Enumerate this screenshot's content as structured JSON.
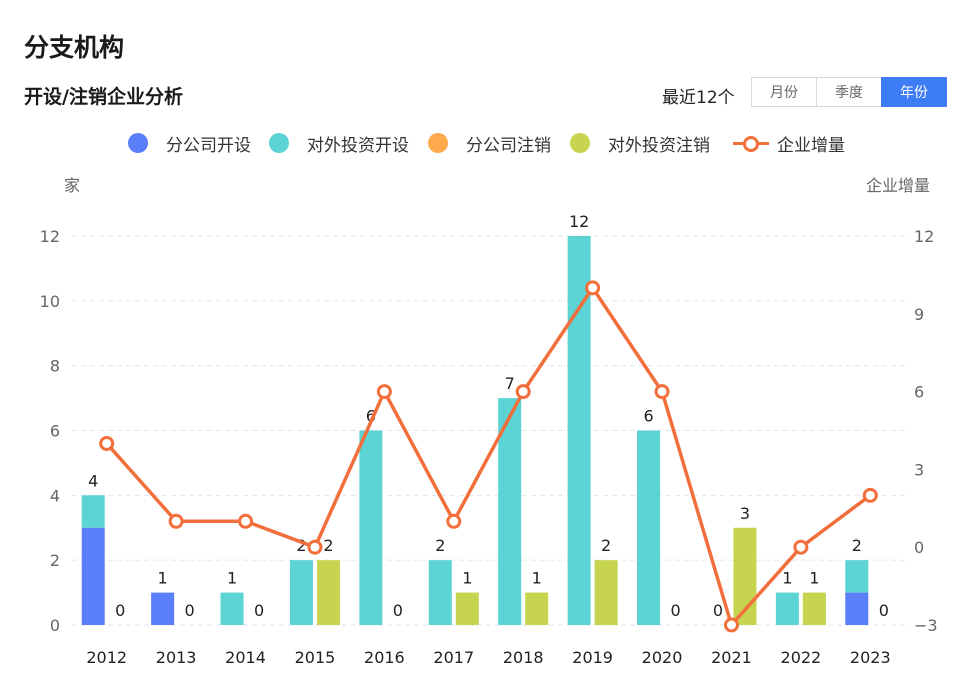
{
  "header": {
    "title": "分支机构"
  },
  "section": {
    "title": "开设/注销企业分析",
    "recent_label": "最近12个",
    "tabs": [
      {
        "label": "月份",
        "active": false
      },
      {
        "label": "季度",
        "active": false
      },
      {
        "label": "年份",
        "active": true
      }
    ]
  },
  "colors": {
    "branch_open": "#5b7ffb",
    "invest_open": "#5cd3d4",
    "branch_close": "#ffa94d",
    "invest_close": "#c6d44f",
    "net_line": "#f26f3c",
    "tab_active": "#3d7cf5"
  },
  "chart_data": {
    "type": "bar",
    "categories": [
      "2012",
      "2013",
      "2014",
      "2015",
      "2016",
      "2017",
      "2018",
      "2019",
      "2020",
      "2021",
      "2022",
      "2023"
    ],
    "series": [
      {
        "name": "分公司开设",
        "stack": "open",
        "values": [
          3,
          1,
          0,
          0,
          0,
          0,
          0,
          0,
          0,
          0,
          0,
          1
        ]
      },
      {
        "name": "对外投资开设",
        "stack": "open",
        "values": [
          1,
          0,
          1,
          2,
          6,
          2,
          7,
          12,
          6,
          0,
          1,
          1
        ]
      },
      {
        "name": "分公司注销",
        "stack": "close",
        "values": [
          0,
          0,
          0,
          0,
          0,
          0,
          0,
          0,
          0,
          0,
          0,
          0
        ]
      },
      {
        "name": "对外投资注销",
        "stack": "close",
        "values": [
          0,
          0,
          0,
          2,
          0,
          1,
          1,
          2,
          0,
          3,
          1,
          0
        ]
      },
      {
        "name": "企业增量",
        "type": "line",
        "axis": "right",
        "values": [
          4,
          1,
          1,
          0,
          6,
          1,
          6,
          10,
          6,
          -3,
          0,
          2
        ]
      }
    ],
    "open_labels": [
      "4",
      "1",
      "1",
      "2",
      "6",
      "2",
      "7",
      "12",
      "6",
      "0",
      "1",
      "2"
    ],
    "close_labels": [
      "0",
      "0",
      "0",
      "2",
      "0",
      "1",
      "1",
      "2",
      "0",
      "3",
      "1",
      "0"
    ],
    "left_axis": {
      "label": "家",
      "ylim": [
        0,
        12
      ],
      "ticks": [
        "0",
        "2",
        "4",
        "6",
        "8",
        "10",
        "12"
      ]
    },
    "right_axis": {
      "label": "企业增量",
      "ylim": [
        -3,
        12
      ],
      "ticks": [
        "−3",
        "0",
        "3",
        "6",
        "9",
        "12"
      ]
    },
    "grid": true,
    "legend_position": "top-center"
  }
}
